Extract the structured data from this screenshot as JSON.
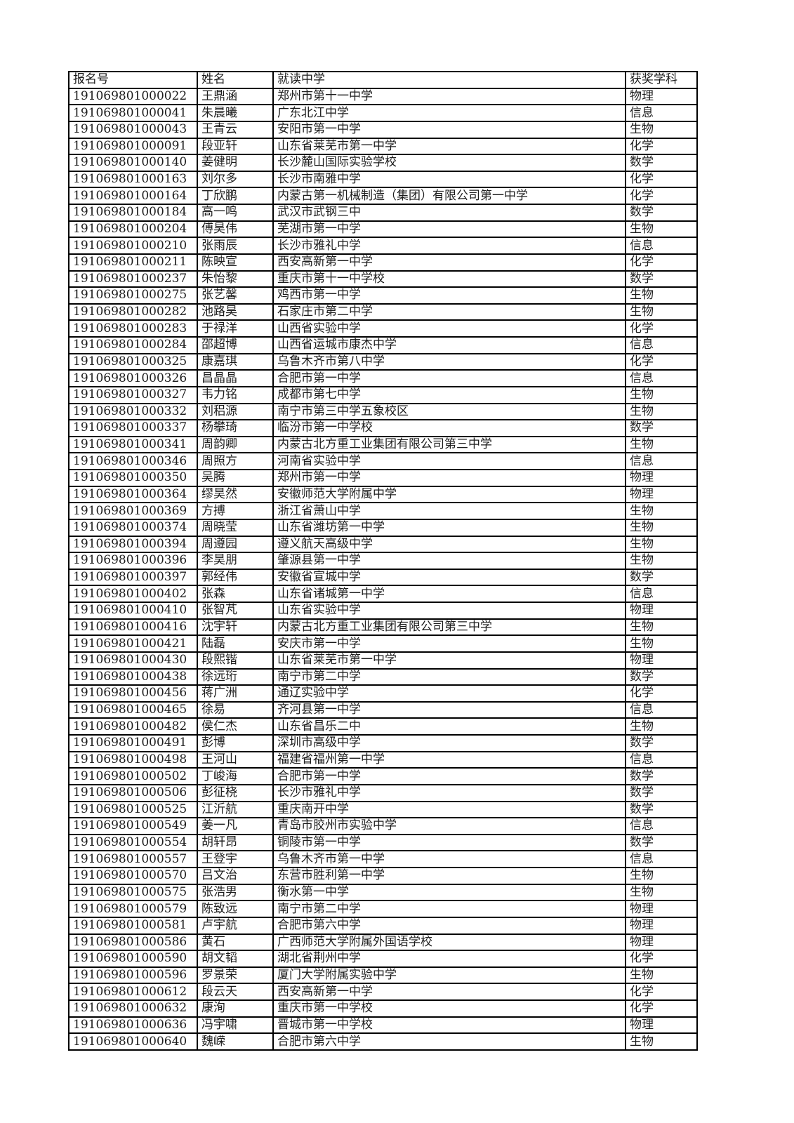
{
  "colors": {
    "page_background": "#ffffff",
    "table_border": "#000000",
    "text": "#1c1c1c"
  },
  "table": {
    "columns": [
      "报名号",
      "姓名",
      "就读中学",
      "获奖学科"
    ],
    "rows": [
      [
        "191069801000022",
        "王鼎涵",
        "郑州市第十一中学",
        "物理"
      ],
      [
        "191069801000041",
        "朱晨曦",
        "广东北江中学",
        "信息"
      ],
      [
        "191069801000043",
        "王青云",
        "安阳市第一中学",
        "生物"
      ],
      [
        "191069801000091",
        "段亚轩",
        "山东省莱芜市第一中学",
        "化学"
      ],
      [
        "191069801000140",
        "姜健明",
        "长沙麓山国际实验学校",
        "数学"
      ],
      [
        "191069801000163",
        "刘尔多",
        "长沙市南雅中学",
        "化学"
      ],
      [
        "191069801000164",
        "丁欣鹏",
        "内蒙古第一机械制造（集团）有限公司第一中学",
        "化学"
      ],
      [
        "191069801000184",
        "高一鸣",
        "武汉市武钢三中",
        "数学"
      ],
      [
        "191069801000204",
        "傅昊伟",
        "芜湖市第一中学",
        "生物"
      ],
      [
        "191069801000210",
        "张雨辰",
        "长沙市雅礼中学",
        "信息"
      ],
      [
        "191069801000211",
        "陈映宣",
        "西安高新第一中学",
        "化学"
      ],
      [
        "191069801000237",
        "朱怡黎",
        "重庆市第十一中学校",
        "数学"
      ],
      [
        "191069801000275",
        "张艺馨",
        "鸡西市第一中学",
        "生物"
      ],
      [
        "191069801000282",
        "池路昊",
        "石家庄市第二中学",
        "生物"
      ],
      [
        "191069801000283",
        "于禄洋",
        "山西省实验中学",
        "化学"
      ],
      [
        "191069801000284",
        "邵超博",
        "山西省运城市康杰中学",
        "信息"
      ],
      [
        "191069801000325",
        "康嘉琪",
        "乌鲁木齐市第八中学",
        "化学"
      ],
      [
        "191069801000326",
        "昌晶晶",
        "合肥市第一中学",
        "信息"
      ],
      [
        "191069801000327",
        "韦力铭",
        "成都市第七中学",
        "生物"
      ],
      [
        "191069801000332",
        "刘稆源",
        "南宁市第三中学五象校区",
        "生物"
      ],
      [
        "191069801000337",
        "杨攀琦",
        "临汾市第一中学校",
        "数学"
      ],
      [
        "191069801000341",
        "周韵卿",
        "内蒙古北方重工业集团有限公司第三中学",
        "生物"
      ],
      [
        "191069801000346",
        "周照方",
        "河南省实验中学",
        "信息"
      ],
      [
        "191069801000350",
        "吴腾",
        "郑州市第一中学",
        "物理"
      ],
      [
        "191069801000364",
        "缪昊然",
        "安徽师范大学附属中学",
        "物理"
      ],
      [
        "191069801000369",
        "方搏",
        "浙江省萧山中学",
        "生物"
      ],
      [
        "191069801000374",
        "周晓莹",
        "山东省潍坊第一中学",
        "生物"
      ],
      [
        "191069801000394",
        "周遵园",
        "遵义航天高级中学",
        "生物"
      ],
      [
        "191069801000396",
        "李昊朋",
        "肇源县第一中学",
        "生物"
      ],
      [
        "191069801000397",
        "郭经伟",
        "安徽省宣城中学",
        "数学"
      ],
      [
        "191069801000402",
        "张森",
        "山东省诸城第一中学",
        "信息"
      ],
      [
        "191069801000410",
        "张智芃",
        "山东省实验中学",
        "物理"
      ],
      [
        "191069801000416",
        "沈宇轩",
        "内蒙古北方重工业集团有限公司第三中学",
        "生物"
      ],
      [
        "191069801000421",
        "陆磊",
        "安庆市第一中学",
        "生物"
      ],
      [
        "191069801000430",
        "段熙锴",
        "山东省莱芜市第一中学",
        "物理"
      ],
      [
        "191069801000438",
        "徐远珩",
        "南宁市第二中学",
        "数学"
      ],
      [
        "191069801000456",
        "蒋广洲",
        "通辽实验中学",
        "化学"
      ],
      [
        "191069801000465",
        "徐易",
        "齐河县第一中学",
        "信息"
      ],
      [
        "191069801000482",
        "侯仁杰",
        "山东省昌乐二中",
        "生物"
      ],
      [
        "191069801000491",
        "彭博",
        "深圳市高级中学",
        "数学"
      ],
      [
        "191069801000498",
        "王河山",
        "福建省福州第一中学",
        "信息"
      ],
      [
        "191069801000502",
        "丁峻海",
        "合肥市第一中学",
        "数学"
      ],
      [
        "191069801000506",
        "彭征桡",
        "长沙市雅礼中学",
        "数学"
      ],
      [
        "191069801000525",
        "江沂航",
        "重庆南开中学",
        "数学"
      ],
      [
        "191069801000549",
        "姜一凡",
        "青岛市胶州市实验中学",
        "信息"
      ],
      [
        "191069801000554",
        "胡轩昂",
        "铜陵市第一中学",
        "数学"
      ],
      [
        "191069801000557",
        "王登宇",
        "乌鲁木齐市第一中学",
        "信息"
      ],
      [
        "191069801000570",
        "吕文治",
        "东营市胜利第一中学",
        "生物"
      ],
      [
        "191069801000575",
        "张浩男",
        "衡水第一中学",
        "生物"
      ],
      [
        "191069801000579",
        "陈致远",
        "南宁市第二中学",
        "物理"
      ],
      [
        "191069801000581",
        "卢宇航",
        "合肥市第六中学",
        "物理"
      ],
      [
        "191069801000586",
        "黄石",
        "广西师范大学附属外国语学校",
        "物理"
      ],
      [
        "191069801000590",
        "胡文韬",
        "湖北省荆州中学",
        "化学"
      ],
      [
        "191069801000596",
        "罗景荣",
        "厦门大学附属实验中学",
        "生物"
      ],
      [
        "191069801000612",
        "段云天",
        "西安高新第一中学",
        "化学"
      ],
      [
        "191069801000632",
        "康洵",
        "重庆市第一中学校",
        "化学"
      ],
      [
        "191069801000636",
        "冯宇啸",
        "晋城市第一中学校",
        "物理"
      ],
      [
        "191069801000640",
        "魏嵘",
        "合肥市第六中学",
        "生物"
      ]
    ]
  }
}
